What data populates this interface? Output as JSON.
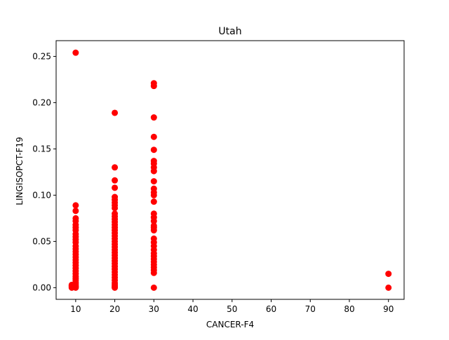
{
  "chart_data": {
    "type": "scatter",
    "title": "Utah",
    "xlabel": "CANCER-F4",
    "ylabel": "LINGISOPCT-F19",
    "xlim": [
      5,
      94
    ],
    "ylim": [
      -0.0126,
      0.267
    ],
    "xticks": [
      10,
      20,
      30,
      40,
      50,
      60,
      70,
      80,
      90
    ],
    "xtick_labels": [
      "10",
      "20",
      "30",
      "40",
      "50",
      "60",
      "70",
      "80",
      "90"
    ],
    "yticks": [
      0.0,
      0.05,
      0.1,
      0.15,
      0.2,
      0.25
    ],
    "ytick_labels": [
      "0.00",
      "0.05",
      "0.10",
      "0.15",
      "0.20",
      "0.25"
    ],
    "grid": false,
    "legend": "none",
    "series": [
      {
        "color": "#ff0000",
        "points": [
          [
            9,
            0.0
          ],
          [
            9,
            0.001
          ],
          [
            9,
            0.002
          ],
          [
            9,
            0.003
          ],
          [
            10,
            0.254
          ],
          [
            10,
            0.089
          ],
          [
            10,
            0.083
          ],
          [
            10,
            0.075
          ],
          [
            10,
            0.072
          ],
          [
            10,
            0.068
          ],
          [
            10,
            0.065
          ],
          [
            10,
            0.062
          ],
          [
            10,
            0.058
          ],
          [
            10,
            0.055
          ],
          [
            10,
            0.052
          ],
          [
            10,
            0.049
          ],
          [
            10,
            0.045
          ],
          [
            10,
            0.042
          ],
          [
            10,
            0.039
          ],
          [
            10,
            0.036
          ],
          [
            10,
            0.033
          ],
          [
            10,
            0.03
          ],
          [
            10,
            0.027
          ],
          [
            10,
            0.024
          ],
          [
            10,
            0.021
          ],
          [
            10,
            0.018
          ],
          [
            10,
            0.015
          ],
          [
            10,
            0.012
          ],
          [
            10,
            0.01
          ],
          [
            10,
            0.008
          ],
          [
            10,
            0.006
          ],
          [
            10,
            0.004
          ],
          [
            10,
            0.002
          ],
          [
            10,
            0.001
          ],
          [
            10,
            0.0
          ],
          [
            20,
            0.189
          ],
          [
            20,
            0.13
          ],
          [
            20,
            0.116
          ],
          [
            20,
            0.108
          ],
          [
            20,
            0.098
          ],
          [
            20,
            0.095
          ],
          [
            20,
            0.092
          ],
          [
            20,
            0.089
          ],
          [
            20,
            0.086
          ],
          [
            20,
            0.08
          ],
          [
            20,
            0.077
          ],
          [
            20,
            0.074
          ],
          [
            20,
            0.071
          ],
          [
            20,
            0.068
          ],
          [
            20,
            0.065
          ],
          [
            20,
            0.062
          ],
          [
            20,
            0.059
          ],
          [
            20,
            0.056
          ],
          [
            20,
            0.053
          ],
          [
            20,
            0.05
          ],
          [
            20,
            0.047
          ],
          [
            20,
            0.044
          ],
          [
            20,
            0.041
          ],
          [
            20,
            0.038
          ],
          [
            20,
            0.035
          ],
          [
            20,
            0.032
          ],
          [
            20,
            0.029
          ],
          [
            20,
            0.026
          ],
          [
            20,
            0.023
          ],
          [
            20,
            0.02
          ],
          [
            20,
            0.017
          ],
          [
            20,
            0.014
          ],
          [
            20,
            0.011
          ],
          [
            20,
            0.008
          ],
          [
            20,
            0.005
          ],
          [
            20,
            0.003
          ],
          [
            20,
            0.001
          ],
          [
            20,
            0.0
          ],
          [
            30,
            0.221
          ],
          [
            30,
            0.218
          ],
          [
            30,
            0.184
          ],
          [
            30,
            0.163
          ],
          [
            30,
            0.149
          ],
          [
            30,
            0.137
          ],
          [
            30,
            0.134
          ],
          [
            30,
            0.13
          ],
          [
            30,
            0.126
          ],
          [
            30,
            0.115
          ],
          [
            30,
            0.107
          ],
          [
            30,
            0.103
          ],
          [
            30,
            0.1
          ],
          [
            30,
            0.093
          ],
          [
            30,
            0.08
          ],
          [
            30,
            0.076
          ],
          [
            30,
            0.072
          ],
          [
            30,
            0.067
          ],
          [
            30,
            0.065
          ],
          [
            30,
            0.062
          ],
          [
            30,
            0.053
          ],
          [
            30,
            0.049
          ],
          [
            30,
            0.045
          ],
          [
            30,
            0.041
          ],
          [
            30,
            0.037
          ],
          [
            30,
            0.034
          ],
          [
            30,
            0.031
          ],
          [
            30,
            0.028
          ],
          [
            30,
            0.025
          ],
          [
            30,
            0.022
          ],
          [
            30,
            0.019
          ],
          [
            30,
            0.016
          ],
          [
            30,
            0.0
          ],
          [
            90,
            0.015
          ],
          [
            90,
            0.0
          ]
        ]
      }
    ]
  }
}
